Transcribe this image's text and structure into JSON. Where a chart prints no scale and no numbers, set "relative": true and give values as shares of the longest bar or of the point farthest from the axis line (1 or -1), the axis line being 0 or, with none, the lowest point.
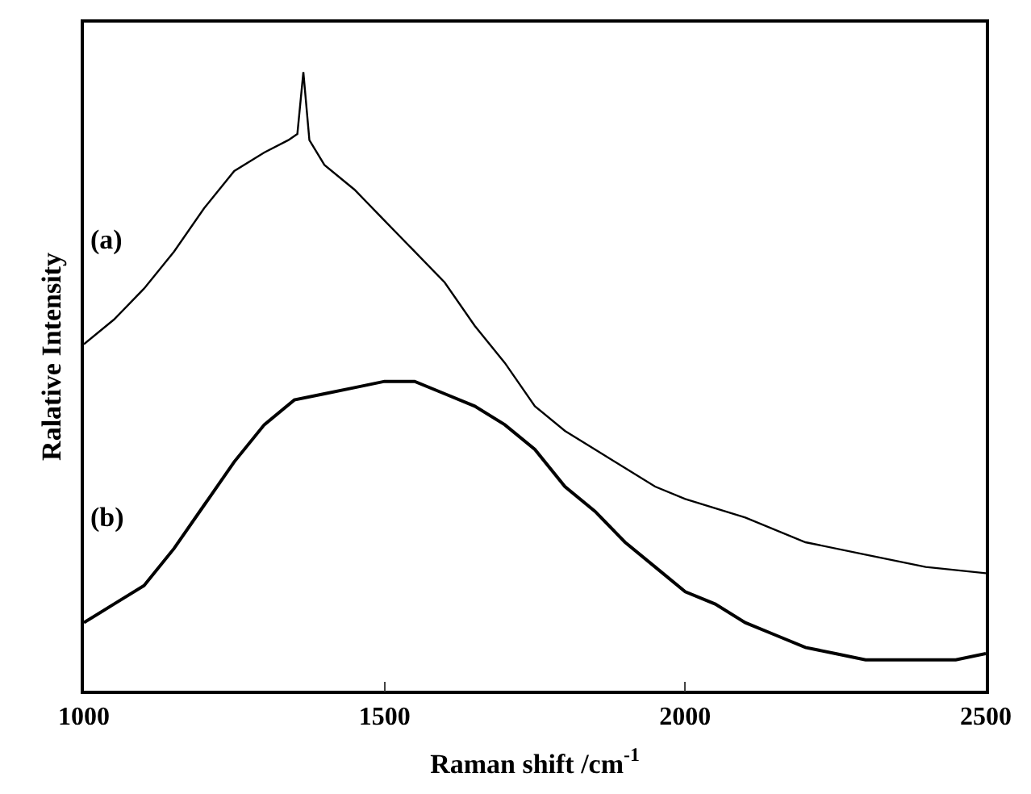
{
  "chart_data": {
    "type": "line",
    "relative": true,
    "xlabel": "Raman shift /cm$^{-1}$",
    "ylabel": "Ralative Intensity",
    "xlim": [
      1000,
      2500
    ],
    "xticks": [
      1000,
      1500,
      2000,
      2500
    ],
    "legend": false,
    "marker": "none",
    "line_style": "solid",
    "series": [
      {
        "name": "(a)",
        "color": "#000000",
        "x": [
          1000,
          1050,
          1100,
          1150,
          1200,
          1250,
          1300,
          1340,
          1355,
          1365,
          1375,
          1400,
          1450,
          1500,
          1550,
          1600,
          1650,
          1700,
          1750,
          1800,
          1850,
          1900,
          1950,
          2000,
          2100,
          2200,
          2300,
          2400,
          2500
        ],
        "values": [
          0.56,
          0.6,
          0.65,
          0.71,
          0.78,
          0.84,
          0.87,
          0.89,
          0.9,
          1.0,
          0.89,
          0.85,
          0.81,
          0.76,
          0.71,
          0.66,
          0.59,
          0.53,
          0.46,
          0.42,
          0.39,
          0.36,
          0.33,
          0.31,
          0.28,
          0.24,
          0.22,
          0.2,
          0.19
        ]
      },
      {
        "name": "(b)",
        "color": "#000000",
        "x": [
          1000,
          1050,
          1100,
          1150,
          1200,
          1250,
          1300,
          1350,
          1400,
          1450,
          1500,
          1550,
          1600,
          1650,
          1700,
          1750,
          1800,
          1850,
          1900,
          1950,
          2000,
          2050,
          2100,
          2150,
          2200,
          2250,
          2300,
          2350,
          2400,
          2450,
          2500
        ],
        "values": [
          0.11,
          0.14,
          0.17,
          0.23,
          0.3,
          0.37,
          0.43,
          0.47,
          0.48,
          0.49,
          0.5,
          0.5,
          0.48,
          0.46,
          0.43,
          0.39,
          0.33,
          0.29,
          0.24,
          0.2,
          0.16,
          0.14,
          0.11,
          0.09,
          0.07,
          0.06,
          0.05,
          0.05,
          0.05,
          0.05,
          0.06
        ]
      }
    ]
  }
}
